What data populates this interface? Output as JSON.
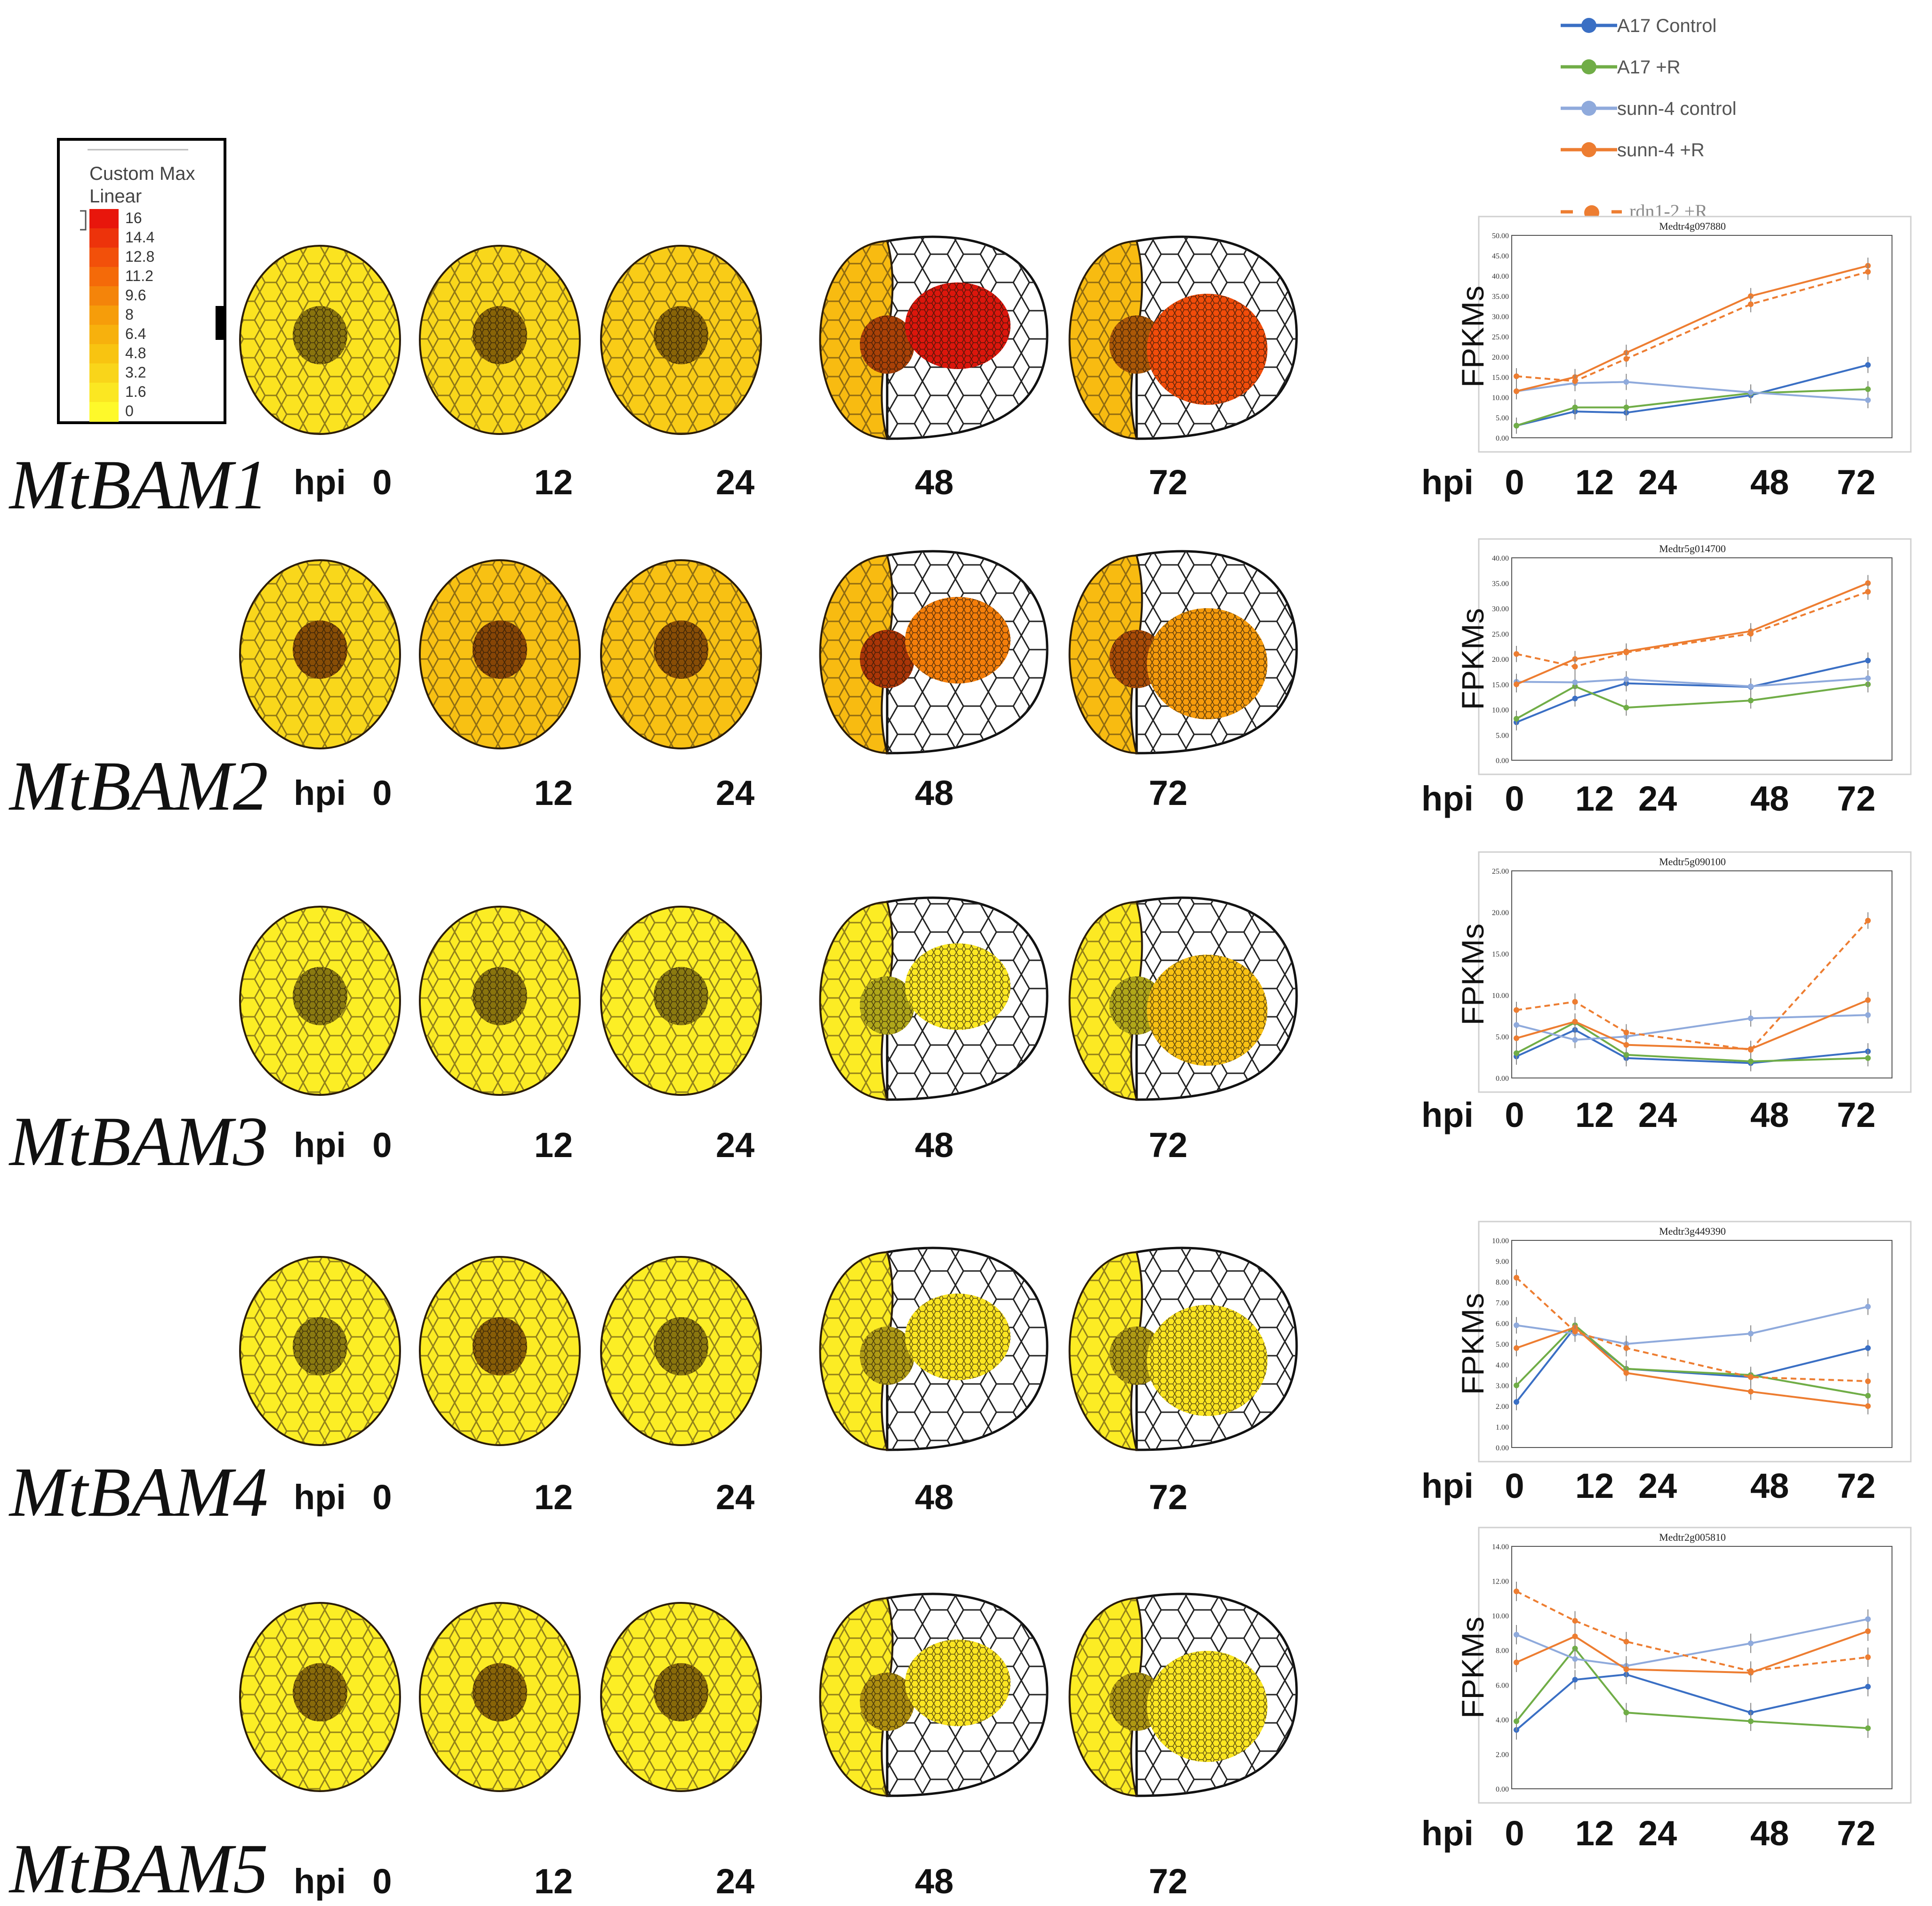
{
  "scale_legend": {
    "title_line1": "Custom Max",
    "title_line2": "Linear",
    "ticks": [
      "16",
      "14.4",
      "12.8",
      "11.2",
      "9.6",
      "8",
      "6.4",
      "4.8",
      "3.2",
      "1.6",
      "0"
    ],
    "colors": [
      "#e8160c",
      "#ed330b",
      "#f2500a",
      "#f46a09",
      "#f4840a",
      "#f69d0a",
      "#f7b10d",
      "#f8c411",
      "#f9d51a",
      "#fbe722",
      "#fef92a"
    ]
  },
  "series_legend": [
    {
      "name": "A17 Control",
      "color": "#3a6fc4",
      "dashed": false
    },
    {
      "name": "A17 +R",
      "color": "#70ad47",
      "dashed": false
    },
    {
      "name": "sunn-4 control",
      "color": "#8faadc",
      "dashed": false
    },
    {
      "name": "sunn-4 +R",
      "color": "#ed7d31",
      "dashed": false
    },
    {
      "name": "rdn1-2 +R",
      "color": "#ed7d31",
      "dashed": true
    }
  ],
  "hpi_label": "hpi",
  "timepoints": [
    "0",
    "12",
    "24",
    "48",
    "72"
  ],
  "y_axis_label": "FPKMs",
  "chart_data": [
    {
      "type": "line",
      "gene_label": "MtBAM1",
      "title": "Medtr4g097880",
      "x": [
        0,
        12,
        24,
        48,
        72
      ],
      "ylim": [
        0,
        50
      ],
      "yticks": [
        "0.00",
        "5.00",
        "10.00",
        "15.00",
        "20.00",
        "25.00",
        "30.00",
        "35.00",
        "40.00",
        "45.00",
        "50.00"
      ],
      "heatmap_levels": [
        2,
        3,
        4,
        5.5,
        5.5
      ],
      "heatmap_centers": [
        1.5,
        4,
        4,
        12,
        10
      ],
      "heatmap_nodules": [
        null,
        null,
        null,
        16,
        13
      ],
      "series": [
        {
          "name": "A17 Control",
          "values": [
            3,
            6.5,
            6.2,
            10.5,
            18
          ]
        },
        {
          "name": "A17 +R",
          "values": [
            3,
            7.5,
            7.5,
            11,
            12
          ]
        },
        {
          "name": "sunn-4 control",
          "values": [
            11.5,
            13.5,
            13.8,
            11.2,
            9.3
          ]
        },
        {
          "name": "sunn-4 +R",
          "values": [
            11.5,
            15,
            21,
            35,
            42.5
          ]
        },
        {
          "name": "rdn1-2 +R",
          "values": [
            15.2,
            14,
            19.5,
            33,
            41
          ]
        }
      ]
    },
    {
      "type": "line",
      "gene_label": "MtBAM2",
      "title": "Medtr5g014700",
      "x": [
        0,
        12,
        24,
        48,
        72
      ],
      "ylim": [
        0,
        40
      ],
      "yticks": [
        "0.00",
        "5.00",
        "10.00",
        "15.00",
        "20.00",
        "25.00",
        "30.00",
        "35.00",
        "40.00"
      ],
      "heatmap_levels": [
        3,
        5,
        5,
        5.5,
        5.5
      ],
      "heatmap_centers": [
        7,
        8,
        7,
        13,
        11
      ],
      "heatmap_nodules": [
        null,
        null,
        null,
        10,
        8
      ],
      "series": [
        {
          "name": "A17 Control",
          "values": [
            7.5,
            12.2,
            15.2,
            14.5,
            19.7
          ]
        },
        {
          "name": "A17 +R",
          "values": [
            8.2,
            14.6,
            10.4,
            11.8,
            15
          ]
        },
        {
          "name": "sunn-4 control",
          "values": [
            15.5,
            15.4,
            16,
            14.6,
            16.2
          ]
        },
        {
          "name": "sunn-4 +R",
          "values": [
            15,
            20,
            21.5,
            25.5,
            35
          ]
        },
        {
          "name": "rdn1-2 +R",
          "values": [
            21,
            18.5,
            21.3,
            25,
            33.3
          ]
        }
      ]
    },
    {
      "type": "line",
      "gene_label": "MtBAM3",
      "title": "Medtr5g090100",
      "x": [
        0,
        12,
        24,
        48,
        72
      ],
      "ylim": [
        0,
        25
      ],
      "yticks": [
        "0.00",
        "5.00",
        "10.00",
        "15.00",
        "20.00",
        "25.00"
      ],
      "heatmap_levels": [
        1,
        1.2,
        1,
        1.2,
        1.4
      ],
      "heatmap_centers": [
        0.5,
        1.5,
        0.5,
        1,
        1
      ],
      "heatmap_nodules": [
        null,
        null,
        null,
        1.5,
        5
      ],
      "series": [
        {
          "name": "A17 Control",
          "values": [
            2.6,
            5.8,
            2.4,
            1.8,
            3.2
          ]
        },
        {
          "name": "A17 +R",
          "values": [
            3,
            6.7,
            2.8,
            2,
            2.4
          ]
        },
        {
          "name": "sunn-4 control",
          "values": [
            6.4,
            4.6,
            5,
            7.2,
            7.6
          ]
        },
        {
          "name": "sunn-4 +R",
          "values": [
            4.8,
            6.8,
            4,
            3.5,
            9.4
          ]
        },
        {
          "name": "rdn1-2 +R",
          "values": [
            8.2,
            9.2,
            5.5,
            3.4,
            19
          ]
        }
      ]
    },
    {
      "type": "line",
      "gene_label": "MtBAM4",
      "title": "Medtr3g449390",
      "x": [
        0,
        12,
        24,
        48,
        72
      ],
      "ylim": [
        0,
        10
      ],
      "yticks": [
        "0.00",
        "1.00",
        "2.00",
        "3.00",
        "4.00",
        "5.00",
        "6.00",
        "7.00",
        "8.00",
        "9.00",
        "10.00"
      ],
      "heatmap_levels": [
        1,
        1.2,
        1,
        1.2,
        1.2
      ],
      "heatmap_centers": [
        0.5,
        5,
        1,
        2.5,
        2.5
      ],
      "heatmap_nodules": [
        null,
        null,
        null,
        1.8,
        1.8
      ],
      "series": [
        {
          "name": "A17 Control",
          "values": [
            2.2,
            5.8,
            3.8,
            3.4,
            4.8
          ]
        },
        {
          "name": "A17 +R",
          "values": [
            3,
            5.9,
            3.8,
            3.5,
            2.5
          ]
        },
        {
          "name": "sunn-4 control",
          "values": [
            5.9,
            5.5,
            5,
            5.5,
            6.8
          ]
        },
        {
          "name": "sunn-4 +R",
          "values": [
            4.8,
            5.8,
            3.6,
            2.7,
            2
          ]
        },
        {
          "name": "rdn1-2 +R",
          "values": [
            8.2,
            5.6,
            4.8,
            3.4,
            3.2
          ]
        }
      ]
    },
    {
      "type": "line",
      "gene_label": "MtBAM5",
      "title": "Medtr2g005810",
      "x": [
        0,
        12,
        24,
        48,
        72
      ],
      "ylim": [
        0,
        14
      ],
      "yticks": [
        "0.00",
        "2.00",
        "4.00",
        "6.00",
        "8.00",
        "10.00",
        "12.00",
        "14.00"
      ],
      "heatmap_levels": [
        1,
        1.2,
        1,
        1.2,
        1.2
      ],
      "heatmap_centers": [
        3,
        4,
        3,
        4,
        3
      ],
      "heatmap_nodules": [
        null,
        null,
        null,
        1.8,
        1.6
      ],
      "series": [
        {
          "name": "A17 Control",
          "values": [
            3.4,
            6.3,
            6.6,
            4.4,
            5.9
          ]
        },
        {
          "name": "A17 +R",
          "values": [
            3.9,
            8.1,
            4.4,
            3.9,
            3.5
          ]
        },
        {
          "name": "sunn-4 control",
          "values": [
            8.9,
            7.5,
            7.1,
            8.4,
            9.8
          ]
        },
        {
          "name": "sunn-4 +R",
          "values": [
            7.3,
            8.8,
            6.9,
            6.7,
            9.1
          ]
        },
        {
          "name": "rdn1-2 +R",
          "values": [
            11.4,
            9.7,
            8.5,
            6.8,
            7.6
          ]
        }
      ]
    }
  ]
}
